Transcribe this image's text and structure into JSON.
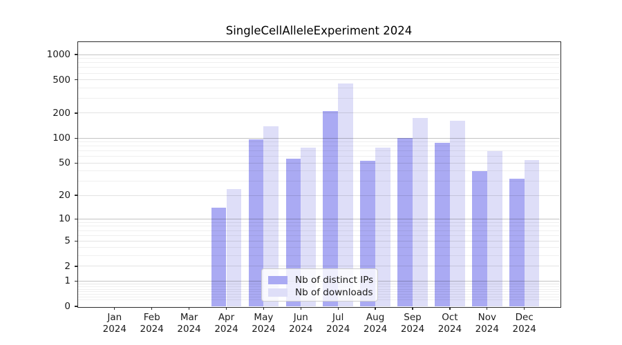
{
  "title": "SingleCellAlleleExperiment 2024",
  "legend": {
    "items": [
      {
        "label": "Nb of distinct IPs",
        "color": "#aaaaf3"
      },
      {
        "label": "Nb of downloads",
        "color": "#dedef8"
      }
    ]
  },
  "y_axis": {
    "tick_labels": [
      "1000",
      "500",
      "200",
      "100",
      "50",
      "20",
      "10",
      "5",
      "2",
      "1",
      "0"
    ],
    "tick_values": [
      1000,
      500,
      200,
      100,
      50,
      20,
      10,
      5,
      2,
      1,
      0
    ]
  },
  "x_axis": {
    "months": [
      "Jan",
      "Feb",
      "Mar",
      "Apr",
      "May",
      "Jun",
      "Jul",
      "Aug",
      "Sep",
      "Oct",
      "Nov",
      "Dec"
    ],
    "year": "2024"
  },
  "chart_data": {
    "type": "bar",
    "title": "SingleCellAlleleExperiment 2024",
    "categories": [
      "Jan 2024",
      "Feb 2024",
      "Mar 2024",
      "Apr 2024",
      "May 2024",
      "Jun 2024",
      "Jul 2024",
      "Aug 2024",
      "Sep 2024",
      "Oct 2024",
      "Nov 2024",
      "Dec 2024"
    ],
    "series": [
      {
        "name": "Nb of distinct IPs",
        "color": "#aaaaf3",
        "values": [
          0,
          0,
          0,
          14,
          97,
          57,
          210,
          53,
          100,
          87,
          40,
          32
        ]
      },
      {
        "name": "Nb of downloads",
        "color": "#dedef8",
        "values": [
          0,
          0,
          0,
          24,
          140,
          77,
          450,
          77,
          175,
          162,
          70,
          54
        ]
      }
    ],
    "yscale": "log1p",
    "ylim": [
      0,
      1435
    ],
    "ytick_values": [
      0,
      1,
      2,
      5,
      10,
      20,
      50,
      100,
      200,
      500,
      1000
    ],
    "grid": "on",
    "legend_position": "lower-center"
  },
  "colors": {
    "ips_bar": "#aaaaf3",
    "downloads_bar": "#dedef8",
    "grid_major": "#c3c3c3",
    "grid_minor": "#efefef",
    "spine": "#2b2b2b"
  }
}
